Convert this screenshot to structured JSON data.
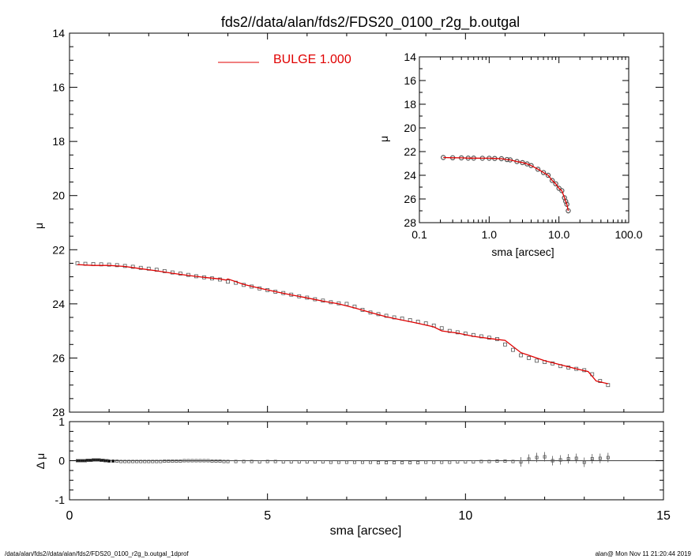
{
  "title": "fds2//data/alan/fds2/FDS20_0100_r2g_b.outgal",
  "footer": {
    "left": "/data/alan/fds2//data/alan/fds2/FDS20_0100_r2g_b.outgal_1dprof",
    "right": "alan@  Mon Nov 11 21:20:44 2019"
  },
  "colors": {
    "model": "#e00000",
    "data": "#555555",
    "axes": "#000000"
  },
  "chart_data": [
    {
      "type": "scatter",
      "title": "fds2//data/alan/fds2/FDS20_0100_r2g_b.outgal",
      "xlabel": "",
      "ylabel": "μ",
      "xlim": [
        0,
        15
      ],
      "ylim": [
        28,
        14
      ],
      "xticks": [],
      "yticks": [
        "14",
        "16",
        "18",
        "20",
        "22",
        "24",
        "26",
        "28"
      ],
      "legend": {
        "position": "top-center",
        "entries": [
          {
            "label": "BULGE  1.000",
            "color": "#e00000"
          }
        ]
      },
      "series": [
        {
          "x": [
            0.2,
            0.4,
            0.6,
            0.8,
            1.0,
            1.2,
            1.4,
            1.6,
            1.8,
            2.0,
            2.2,
            2.4,
            2.6,
            2.8,
            3.0,
            3.2,
            3.4,
            3.6,
            3.8,
            4.0,
            4.2,
            4.4,
            4.6,
            4.8,
            5.0,
            5.2,
            5.4,
            5.6,
            5.8,
            6.0,
            6.2,
            6.4,
            6.6,
            6.8,
            7.0,
            7.2,
            7.4,
            7.6,
            7.8,
            8.0,
            8.2,
            8.4,
            8.6,
            8.8,
            9.0,
            9.2,
            9.4,
            9.6,
            9.8,
            10.0,
            10.2,
            10.4,
            10.6,
            10.8,
            11.0,
            11.2,
            11.4,
            11.6,
            11.8,
            12.0,
            12.2,
            12.4,
            12.6,
            12.8,
            13.0,
            13.2,
            13.4,
            13.6
          ],
          "y": [
            22.5,
            22.52,
            22.53,
            22.54,
            22.55,
            22.57,
            22.6,
            22.63,
            22.67,
            22.7,
            22.74,
            22.79,
            22.84,
            22.88,
            22.93,
            22.98,
            23.02,
            23.06,
            23.1,
            23.18,
            23.22,
            23.3,
            23.36,
            23.43,
            23.49,
            23.55,
            23.6,
            23.66,
            23.72,
            23.77,
            23.83,
            23.88,
            23.94,
            23.98,
            24.0,
            24.1,
            24.22,
            24.32,
            24.38,
            24.44,
            24.5,
            24.54,
            24.6,
            24.66,
            24.72,
            24.8,
            24.9,
            25.0,
            25.05,
            25.1,
            25.15,
            25.2,
            25.25,
            25.3,
            25.5,
            25.7,
            25.9,
            26.0,
            26.1,
            26.15,
            26.2,
            26.3,
            26.35,
            26.4,
            26.45,
            26.6,
            26.85,
            27.0
          ]
        },
        {
          "name": "BULGE  1.000",
          "x": [
            0.2,
            0.6,
            1.0,
            1.4,
            1.8,
            2.2,
            2.6,
            3.0,
            3.4,
            3.8,
            3.95,
            4.0,
            4.4,
            4.8,
            5.2,
            5.6,
            6.0,
            6.4,
            6.8,
            7.2,
            7.6,
            8.0,
            8.4,
            8.8,
            9.2,
            9.4,
            9.8,
            10.2,
            10.6,
            11.0,
            11.4,
            11.6,
            12.0,
            12.4,
            12.8,
            13.1,
            13.3,
            13.6
          ],
          "y": [
            22.55,
            22.58,
            22.58,
            22.62,
            22.7,
            22.78,
            22.87,
            22.95,
            23.02,
            23.08,
            23.12,
            23.08,
            23.28,
            23.42,
            23.55,
            23.67,
            23.78,
            23.9,
            24.0,
            24.15,
            24.32,
            24.48,
            24.6,
            24.72,
            24.85,
            25.0,
            25.08,
            25.2,
            25.28,
            25.35,
            25.8,
            25.9,
            26.1,
            26.25,
            26.4,
            26.5,
            26.85,
            26.95
          ]
        }
      ]
    },
    {
      "type": "scatter",
      "title": "",
      "xlabel": "sma [arcsec]",
      "ylabel": "Δ μ",
      "xlim": [
        0,
        15
      ],
      "ylim": [
        -1,
        1
      ],
      "xticks": [
        "0",
        "5",
        "10",
        "15"
      ],
      "yticks": [
        "1",
        "0",
        "-1"
      ],
      "series": [
        {
          "x": [
            0.2,
            0.25,
            0.3,
            0.35,
            0.4,
            0.45,
            0.5,
            0.55,
            0.6,
            0.65,
            0.7,
            0.75,
            0.8,
            0.85,
            0.9,
            0.95,
            1.0,
            1.1,
            1.2,
            1.3,
            1.4,
            1.5,
            1.6,
            1.7,
            1.8,
            1.9,
            2.0,
            2.1,
            2.2,
            2.3,
            2.4,
            2.5,
            2.6,
            2.7,
            2.8,
            2.9,
            3.0,
            3.1,
            3.2,
            3.3,
            3.4,
            3.5,
            3.6,
            3.7,
            3.8,
            3.9,
            4.0,
            4.2,
            4.4,
            4.6,
            4.8,
            5.0,
            5.2,
            5.4,
            5.6,
            5.8,
            6.0,
            6.2,
            6.4,
            6.6,
            6.8,
            7.0,
            7.2,
            7.4,
            7.6,
            7.8,
            8.0,
            8.2,
            8.4,
            8.6,
            8.8,
            9.0,
            9.2,
            9.4,
            9.6,
            9.8,
            10.0,
            10.2,
            10.4,
            10.6,
            10.8,
            11.0,
            11.2,
            11.4,
            11.6,
            11.8,
            12.0,
            12.2,
            12.4,
            12.6,
            12.8,
            13.0,
            13.2,
            13.4,
            13.6
          ],
          "y": [
            0.0,
            0.0,
            0.0,
            0.0,
            0.0,
            0.01,
            0.01,
            0.01,
            0.02,
            0.02,
            0.02,
            0.02,
            0.01,
            0.01,
            0.0,
            0.0,
            -0.01,
            -0.01,
            -0.01,
            -0.02,
            -0.02,
            -0.02,
            -0.02,
            -0.02,
            -0.02,
            -0.02,
            -0.02,
            -0.02,
            -0.02,
            -0.02,
            -0.01,
            -0.01,
            -0.01,
            -0.01,
            -0.01,
            0.0,
            0.0,
            0.0,
            0.0,
            0.0,
            0.0,
            0.0,
            -0.01,
            -0.01,
            -0.01,
            -0.02,
            -0.02,
            -0.02,
            -0.02,
            -0.02,
            -0.03,
            -0.02,
            -0.02,
            -0.03,
            -0.03,
            -0.03,
            -0.03,
            -0.03,
            -0.03,
            -0.04,
            -0.04,
            -0.04,
            -0.04,
            -0.04,
            -0.04,
            -0.05,
            -0.05,
            -0.05,
            -0.05,
            -0.05,
            -0.05,
            -0.04,
            -0.04,
            -0.04,
            -0.04,
            -0.03,
            -0.03,
            -0.03,
            -0.02,
            -0.02,
            -0.01,
            -0.01,
            -0.02,
            -0.03,
            0.04,
            0.08,
            0.1,
            0.0,
            0.02,
            0.05,
            0.06,
            -0.04,
            0.05,
            0.06,
            0.08
          ]
        }
      ]
    },
    {
      "type": "line",
      "title": "",
      "xlabel": "sma [arcsec]",
      "ylabel": "μ",
      "xscale": "log",
      "xlim": [
        0.1,
        100
      ],
      "ylim": [
        28,
        14
      ],
      "xticks": [
        "0.1",
        "1.0",
        "10.0",
        "100.0"
      ],
      "yticks": [
        "14",
        "16",
        "18",
        "20",
        "22",
        "24",
        "26",
        "28"
      ],
      "series": [
        {
          "x": [
            0.22,
            0.3,
            0.4,
            0.5,
            0.6,
            0.8,
            1.0,
            1.2,
            1.5,
            1.8,
            2.0,
            2.5,
            3.0,
            3.5,
            4.0,
            5.0,
            6.0,
            7.0,
            8.0,
            9.0,
            10.0,
            11.0,
            12.0,
            12.5,
            13.0,
            13.6
          ],
          "y": [
            22.5,
            22.52,
            22.53,
            22.55,
            22.55,
            22.56,
            22.56,
            22.58,
            22.6,
            22.67,
            22.7,
            22.84,
            22.93,
            23.04,
            23.18,
            23.49,
            23.77,
            24.0,
            24.44,
            24.72,
            25.1,
            25.3,
            25.9,
            26.2,
            26.45,
            27.0
          ]
        }
      ]
    }
  ]
}
